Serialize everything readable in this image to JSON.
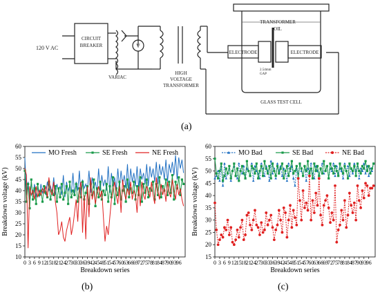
{
  "schematic": {
    "supply_label": "120 V AC",
    "breaker_label_1": "CIRCUIT",
    "breaker_label_2": "BREAKER",
    "variac_label": "VARIAC",
    "voltmeter_symbol": "V",
    "transformer_label_1": "HIGH",
    "transformer_label_2": "VOLTAGE",
    "transformer_label_3": "TRANSFORMER",
    "oil_label_1": "TRANSFORMER",
    "oil_label_2": "OIL",
    "electrode_left": "ELECTRODE",
    "electrode_right": "ELECTRODE",
    "gap_label_1": "2.54mm",
    "gap_label_2": "GAP",
    "cell_label": "GLASS TEST CELL"
  },
  "panels": {
    "a": "(a)",
    "b": "(b)",
    "c": "(c)"
  },
  "chart_data": [
    {
      "type": "line",
      "panel": "b",
      "xlabel": "Breakdown series",
      "ylabel": "Breakdown voltage (kV)",
      "xlim": [
        0,
        100
      ],
      "ylim": [
        10,
        60
      ],
      "xticks": [
        0,
        3,
        6,
        9,
        12,
        15,
        18,
        21,
        24,
        27,
        30,
        33,
        36,
        39,
        42,
        45,
        48,
        51,
        54,
        57,
        60,
        63,
        66,
        69,
        72,
        75,
        78,
        81,
        84,
        87,
        90,
        93,
        96
      ],
      "yticks": [
        10,
        15,
        20,
        25,
        30,
        35,
        40,
        45,
        50,
        55,
        60
      ],
      "legend_position": "top",
      "series": [
        {
          "name": "MO Fresh",
          "color": "#1f6fc2",
          "marker": "none",
          "values": [
            55,
            38,
            44,
            36,
            44,
            38,
            43,
            37,
            42,
            37,
            43,
            39,
            41,
            38,
            44,
            40,
            42,
            39,
            46,
            38,
            43,
            40,
            42,
            38,
            47,
            37,
            44,
            40,
            42,
            39,
            48,
            38,
            44,
            40,
            49,
            37,
            45,
            41,
            43,
            40,
            49,
            39,
            46,
            41,
            44,
            39,
            50,
            40,
            47,
            42,
            45,
            40,
            51,
            39,
            48,
            42,
            46,
            40,
            50,
            41,
            49,
            43,
            47,
            41,
            52,
            40,
            50,
            44,
            48,
            42,
            51,
            41,
            50,
            45,
            48,
            43,
            52,
            42,
            51,
            46,
            50,
            44,
            53,
            43,
            52,
            47,
            51,
            45,
            54,
            44,
            52,
            48,
            53,
            47,
            56,
            45,
            55,
            50,
            54,
            48
          ]
        },
        {
          "name": "SE Fresh",
          "color": "#1a9a4a",
          "marker": "square",
          "values": [
            49,
            35,
            43,
            32,
            45,
            36,
            41,
            34,
            43,
            38,
            40,
            35,
            42,
            39,
            37,
            44,
            36,
            40,
            38,
            42,
            35,
            41,
            37,
            43,
            36,
            39,
            42,
            34,
            44,
            37,
            40,
            38,
            43,
            35,
            41,
            37,
            44,
            36,
            39,
            42,
            34,
            43,
            38,
            45,
            33,
            41,
            37,
            44,
            36,
            40,
            38,
            43,
            35,
            42,
            37,
            46,
            34,
            41,
            38,
            44,
            36,
            40,
            42,
            35,
            45,
            37,
            41,
            39,
            44,
            36,
            42,
            38,
            46,
            35,
            43,
            39,
            45,
            37,
            41,
            40,
            44,
            36,
            43,
            38,
            46,
            37,
            42,
            40,
            45,
            38,
            44,
            39,
            47,
            36,
            44,
            41,
            46,
            38,
            45,
            43
          ]
        },
        {
          "name": "NE Fresh",
          "color": "#e02020",
          "marker": "none",
          "values": [
            50,
            47,
            14,
            42,
            38,
            40,
            36,
            42,
            37,
            40,
            38,
            41,
            39,
            42,
            37,
            46,
            40,
            38,
            44,
            35,
            30,
            20,
            22,
            26,
            19,
            17,
            22,
            25,
            28,
            20,
            24,
            30,
            36,
            26,
            40,
            44,
            21,
            38,
            18,
            42,
            28,
            46,
            36,
            40,
            34,
            39,
            42,
            37,
            40,
            28,
            17,
            24,
            20,
            28,
            36,
            40,
            44,
            38,
            34,
            42,
            30,
            45,
            39,
            36,
            41,
            38,
            44,
            36,
            40,
            38,
            30,
            42,
            33,
            44,
            38,
            36,
            42,
            40,
            37,
            44,
            38,
            34,
            46,
            40,
            36,
            43,
            38,
            41,
            35,
            44,
            39,
            37,
            45,
            40,
            36,
            43,
            38,
            41,
            36,
            33
          ]
        }
      ]
    },
    {
      "type": "line",
      "panel": "c",
      "xlabel": "Breakdown series",
      "ylabel": "Breakdown voltage (kV)",
      "xlim": [
        0,
        100
      ],
      "ylim": [
        15,
        60
      ],
      "xticks": [
        0,
        3,
        6,
        9,
        12,
        15,
        18,
        21,
        24,
        27,
        30,
        33,
        36,
        39,
        42,
        45,
        48,
        51,
        54,
        57,
        60,
        63,
        66,
        69,
        72,
        75,
        78,
        81,
        84,
        87,
        90,
        93,
        96
      ],
      "yticks": [
        15,
        20,
        25,
        30,
        35,
        40,
        45,
        50,
        55,
        60
      ],
      "legend_position": "top",
      "series": [
        {
          "name": "MO Bad",
          "color": "#1f6fc2",
          "marker": "triangle",
          "values": [
            47,
            48,
            50,
            46,
            52,
            44,
            53,
            47,
            49,
            51,
            46,
            50,
            52,
            48,
            47,
            53,
            50,
            49,
            52,
            47,
            51,
            50,
            48,
            53,
            46,
            52,
            50,
            49,
            47,
            53,
            51,
            48,
            52,
            50,
            46,
            54,
            49,
            51,
            47,
            53,
            50,
            52,
            48,
            51,
            49,
            46,
            53,
            50,
            52,
            47,
            44,
            51,
            49,
            53,
            50,
            48,
            52,
            46,
            51,
            50,
            53,
            49,
            47,
            52,
            50,
            48,
            51,
            53,
            49,
            50,
            52,
            47,
            51,
            50,
            53,
            48,
            52,
            49,
            51,
            50,
            47,
            53,
            50,
            52,
            48,
            51,
            49,
            53,
            50,
            52,
            47,
            51,
            50,
            53,
            49,
            52,
            48,
            51,
            50,
            53
          ]
        },
        {
          "name": "SE Bad",
          "color": "#1a9a4a",
          "marker": "square",
          "values": [
            55,
            49,
            47,
            50,
            53,
            46,
            48,
            51,
            49,
            52,
            47,
            50,
            53,
            48,
            51,
            46,
            50,
            52,
            49,
            47,
            54,
            50,
            48,
            52,
            51,
            49,
            53,
            47,
            50,
            52,
            48,
            54,
            51,
            49,
            52,
            47,
            53,
            50,
            48,
            52,
            49,
            51,
            53,
            47,
            50,
            52,
            48,
            51,
            54,
            49,
            50,
            52,
            47,
            53,
            51,
            48,
            52,
            50,
            54,
            49,
            51,
            47,
            53,
            50,
            52,
            48,
            51,
            49,
            54,
            50,
            52,
            47,
            53,
            51,
            49,
            52,
            50,
            48,
            53,
            51,
            49,
            52,
            50,
            47,
            53,
            51,
            50,
            52,
            48,
            53,
            50,
            49,
            52,
            51,
            54,
            50,
            52,
            49,
            51,
            53
          ]
        },
        {
          "name": "NE Bad",
          "color": "#e02020",
          "marker": "circle",
          "values": [
            37,
            26,
            20,
            22,
            24,
            23,
            27,
            26,
            30,
            24,
            27,
            21,
            20,
            22,
            26,
            23,
            27,
            30,
            22,
            24,
            32,
            33,
            28,
            26,
            30,
            34,
            28,
            27,
            24,
            29,
            25,
            26,
            33,
            28,
            30,
            32,
            27,
            22,
            26,
            28,
            34,
            30,
            25,
            35,
            33,
            23,
            30,
            36,
            27,
            34,
            31,
            28,
            47,
            38,
            30,
            42,
            35,
            37,
            34,
            48,
            30,
            38,
            33,
            41,
            36,
            47,
            32,
            28,
            36,
            38,
            40,
            35,
            29,
            33,
            30,
            44,
            21,
            26,
            28,
            34,
            30,
            38,
            27,
            32,
            41,
            36,
            33,
            37,
            30,
            44,
            38,
            35,
            42,
            39,
            45,
            44,
            40,
            43,
            43,
            44
          ]
        }
      ]
    }
  ]
}
